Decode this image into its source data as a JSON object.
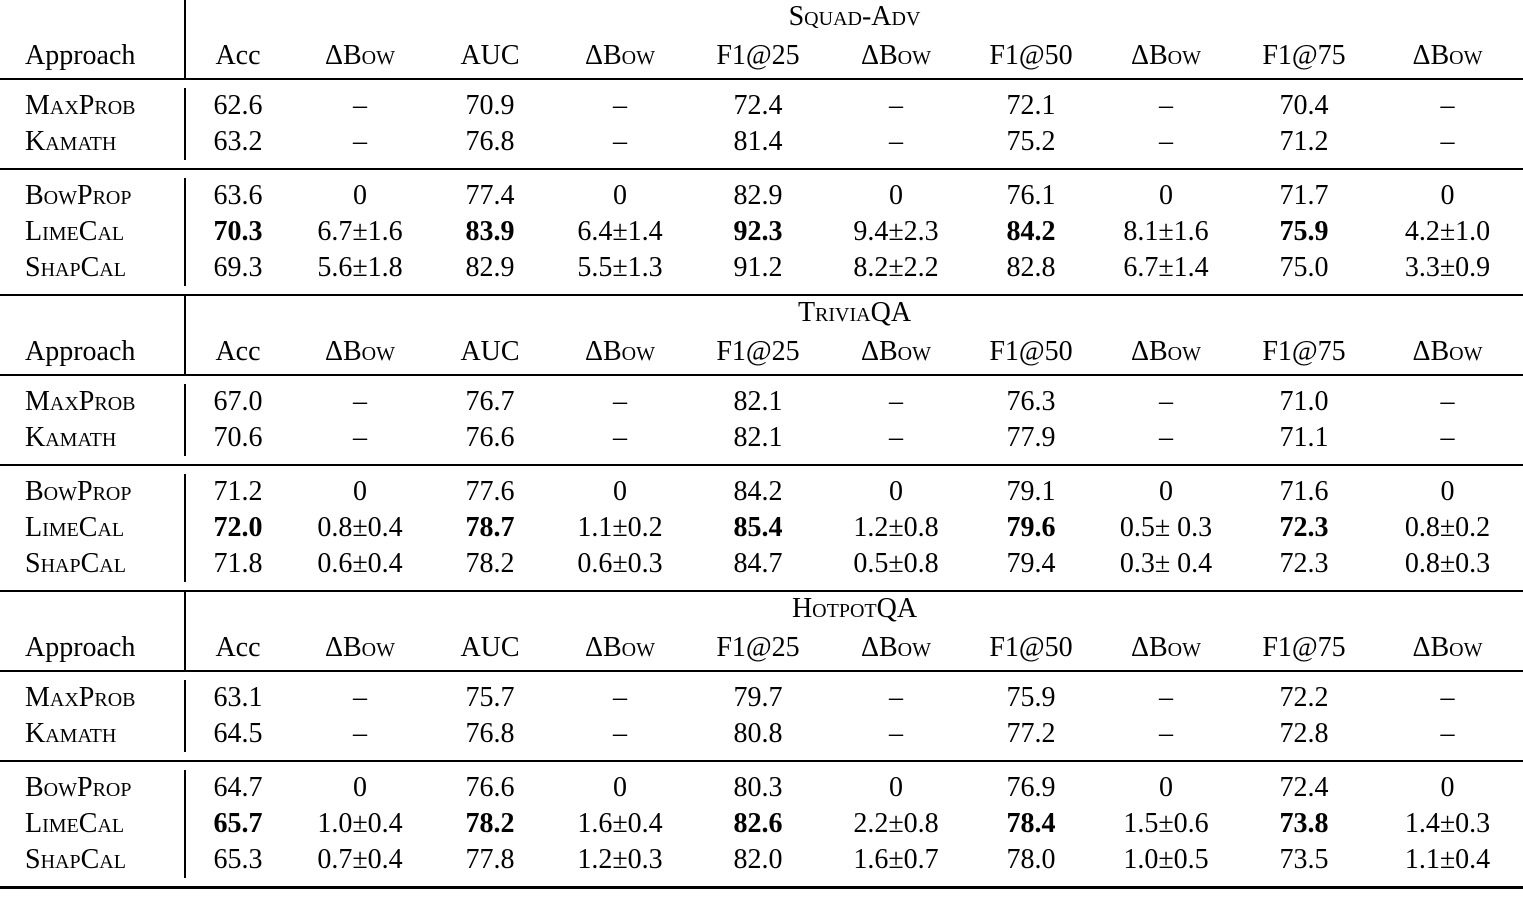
{
  "table": {
    "approach_header": "Approach",
    "columns": [
      "Acc",
      "ΔBow",
      "AUC",
      "ΔBow",
      "F1@25",
      "ΔBow",
      "F1@50",
      "ΔBow",
      "F1@75",
      "ΔBow"
    ],
    "dash": "–",
    "sections": [
      {
        "title": "Squad-Adv",
        "baseline_rows": [
          {
            "approach": "MaxProb",
            "cells": [
              "62.6",
              "–",
              "70.9",
              "–",
              "72.4",
              "–",
              "72.1",
              "–",
              "70.4",
              "–"
            ]
          },
          {
            "approach": "Kamath",
            "cells": [
              "63.2",
              "–",
              "76.8",
              "–",
              "81.4",
              "–",
              "75.2",
              "–",
              "71.2",
              "–"
            ]
          }
        ],
        "method_rows": [
          {
            "approach": "BowProp",
            "cells": [
              "63.6",
              "0",
              "77.4",
              "0",
              "82.9",
              "0",
              "76.1",
              "0",
              "71.7",
              "0"
            ]
          },
          {
            "approach": "LimeCal",
            "cells": [
              "70.3",
              "6.7±1.6",
              "83.9",
              "6.4±1.4",
              "92.3",
              "9.4±2.3",
              "84.2",
              "8.1±1.6",
              "75.9",
              "4.2±1.0"
            ],
            "bold_indices": [
              0,
              2,
              4,
              6,
              8
            ]
          },
          {
            "approach": "ShapCal",
            "cells": [
              "69.3",
              "5.6±1.8",
              "82.9",
              "5.5±1.3",
              "91.2",
              "8.2±2.2",
              "82.8",
              "6.7±1.4",
              "75.0",
              "3.3±0.9"
            ]
          }
        ]
      },
      {
        "title": "TriviaQA",
        "baseline_rows": [
          {
            "approach": "MaxProb",
            "cells": [
              "67.0",
              "–",
              "76.7",
              "–",
              "82.1",
              "–",
              "76.3",
              "–",
              "71.0",
              "–"
            ]
          },
          {
            "approach": "Kamath",
            "cells": [
              "70.6",
              "–",
              "76.6",
              "–",
              "82.1",
              "–",
              "77.9",
              "–",
              "71.1",
              "–"
            ]
          }
        ],
        "method_rows": [
          {
            "approach": "BowProp",
            "cells": [
              "71.2",
              "0",
              "77.6",
              "0",
              "84.2",
              "0",
              "79.1",
              "0",
              "71.6",
              "0"
            ]
          },
          {
            "approach": "LimeCal",
            "cells": [
              "72.0",
              "0.8±0.4",
              "78.7",
              "1.1±0.2",
              "85.4",
              "1.2±0.8",
              "79.6",
              "0.5± 0.3",
              "72.3",
              "0.8±0.2"
            ],
            "bold_indices": [
              0,
              2,
              4,
              6,
              8
            ]
          },
          {
            "approach": "ShapCal",
            "cells": [
              "71.8",
              "0.6±0.4",
              "78.2",
              "0.6±0.3",
              "84.7",
              "0.5±0.8",
              "79.4",
              "0.3± 0.4",
              "72.3",
              "0.8±0.3"
            ]
          }
        ]
      },
      {
        "title": "HotpotQA",
        "baseline_rows": [
          {
            "approach": "MaxProb",
            "cells": [
              "63.1",
              "–",
              "75.7",
              "–",
              "79.7",
              "–",
              "75.9",
              "–",
              "72.2",
              "–"
            ]
          },
          {
            "approach": "Kamath",
            "cells": [
              "64.5",
              "–",
              "76.8",
              "–",
              "80.8",
              "–",
              "77.2",
              "–",
              "72.8",
              "–"
            ]
          }
        ],
        "method_rows": [
          {
            "approach": "BowProp",
            "cells": [
              "64.7",
              "0",
              "76.6",
              "0",
              "80.3",
              "0",
              "76.9",
              "0",
              "72.4",
              "0"
            ]
          },
          {
            "approach": "LimeCal",
            "cells": [
              "65.7",
              "1.0±0.4",
              "78.2",
              "1.6±0.4",
              "82.6",
              "2.2±0.8",
              "78.4",
              "1.5±0.6",
              "73.8",
              "1.4±0.3"
            ],
            "bold_indices": [
              0,
              2,
              4,
              6,
              8
            ]
          },
          {
            "approach": "ShapCal",
            "cells": [
              "65.3",
              "0.7±0.4",
              "77.8",
              "1.2±0.3",
              "82.0",
              "1.6±0.7",
              "78.0",
              "1.0±0.5",
              "73.5",
              "1.1±0.4"
            ]
          }
        ]
      }
    ],
    "colors": {
      "text": "#000000",
      "background": "#ffffff",
      "rule": "#000000"
    }
  }
}
